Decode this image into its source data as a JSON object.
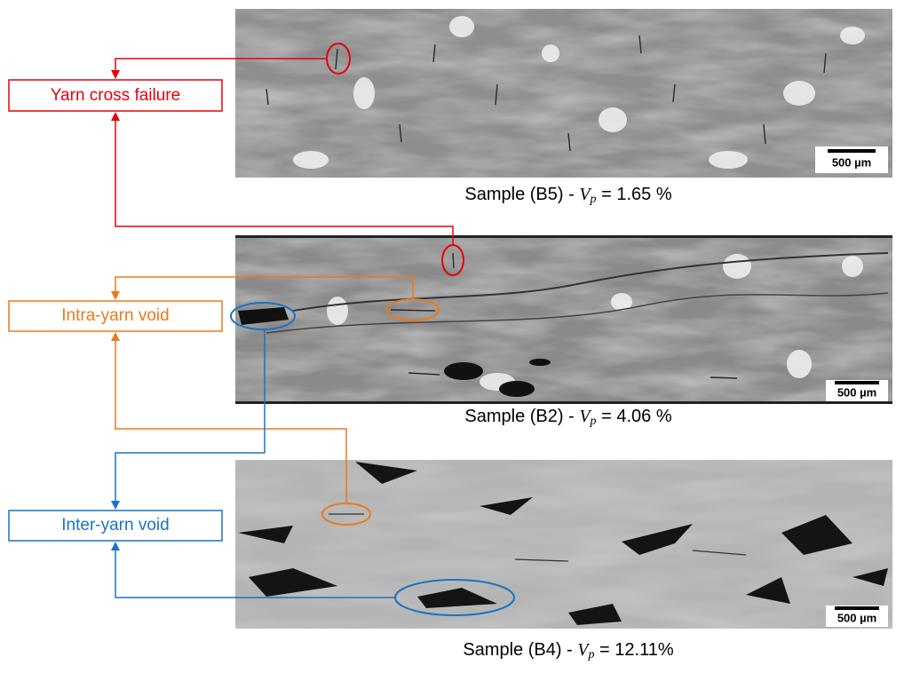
{
  "labels": {
    "yarn_cross_failure": "Yarn cross failure",
    "intra_yarn_void": "Intra-yarn void",
    "inter_yarn_void": "Inter-yarn void"
  },
  "panels": [
    {
      "caption": {
        "prefix": "Sample (B5) - ",
        "variable": "V",
        "subscript": "p",
        "suffix": " = 1.65 %"
      },
      "scale_bar": "500 µm"
    },
    {
      "caption": {
        "prefix": "Sample (B2) - ",
        "variable": "V",
        "subscript": "p",
        "suffix": " = 4.06 %"
      },
      "scale_bar": "500 µm"
    },
    {
      "caption": {
        "prefix": "Sample (B4) - ",
        "variable": "V",
        "subscript": "p",
        "suffix": " = 12.11%"
      },
      "scale_bar": "500 µm"
    }
  ]
}
